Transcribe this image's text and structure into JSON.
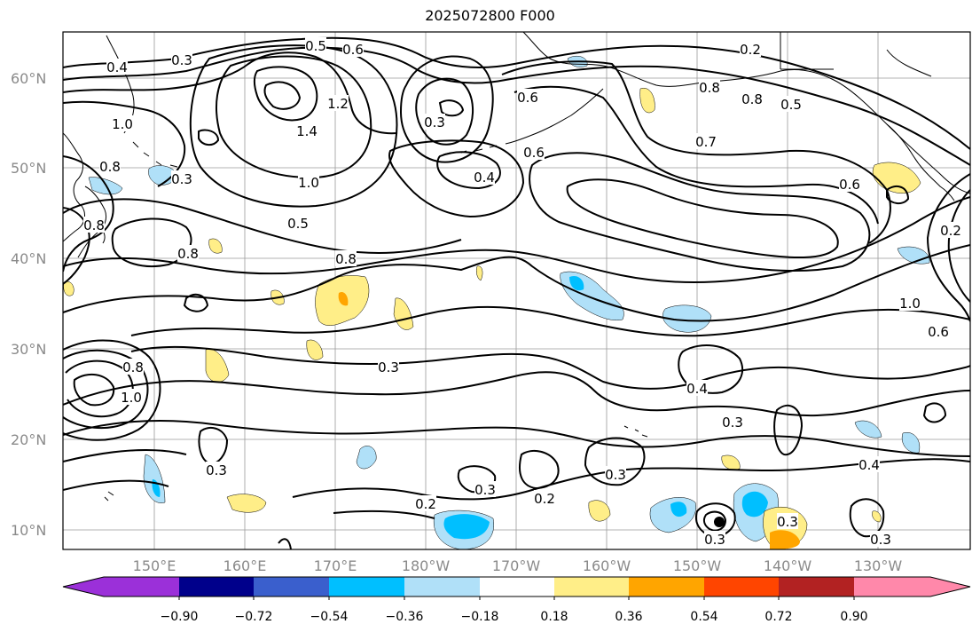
{
  "title": "2025072800 F000",
  "colors": {
    "contour": "#000000",
    "grid": "#9a9a9a",
    "coast": "#000000",
    "tick_label": "#8a8a8a",
    "neg_shallow": "#b0e0f8",
    "neg_mid": "#00bfff",
    "pos_shallow": "#ffee88",
    "pos_mid": "#ffa500"
  },
  "map": {
    "lat_labels": [
      "60°N",
      "50°N",
      "40°N",
      "30°N",
      "20°N",
      "10°N"
    ],
    "lon_labels": [
      "150°E",
      "160°E",
      "170°E",
      "180°W",
      "170°W",
      "160°W",
      "150°W",
      "140°W",
      "130°W"
    ],
    "contour_labels": [
      "0.4",
      "0.3",
      "0.5",
      "0.6",
      "0.2",
      "0.8",
      "1.2",
      "1.4",
      "1.0",
      "1.0",
      "0.8",
      "0.3",
      "0.3",
      "0.6",
      "0.4",
      "0.6",
      "0.8",
      "0.7",
      "0.5",
      "0.6",
      "0.8",
      "0.5",
      "0.8",
      "0.3",
      "0.4",
      "0.3",
      "0.4",
      "0.3",
      "0.2",
      "0.2",
      "0.3",
      "0.3",
      "0.3",
      "0.3",
      "0.3",
      "0.2",
      "1.0",
      "0.8",
      "0.6",
      "1.0",
      "0.8"
    ]
  },
  "colorbar": {
    "labels": [
      "−0.90",
      "−0.72",
      "−0.54",
      "−0.36",
      "−0.18",
      "0.18",
      "0.36",
      "0.54",
      "0.72",
      "0.90"
    ],
    "colors": [
      "#9b30d9",
      "#00008b",
      "#3a5fcd",
      "#00bfff",
      "#b0e0f8",
      "#ffffff",
      "#ffee88",
      "#ffa500",
      "#ff4500",
      "#b22222",
      "#ff88aa"
    ]
  }
}
